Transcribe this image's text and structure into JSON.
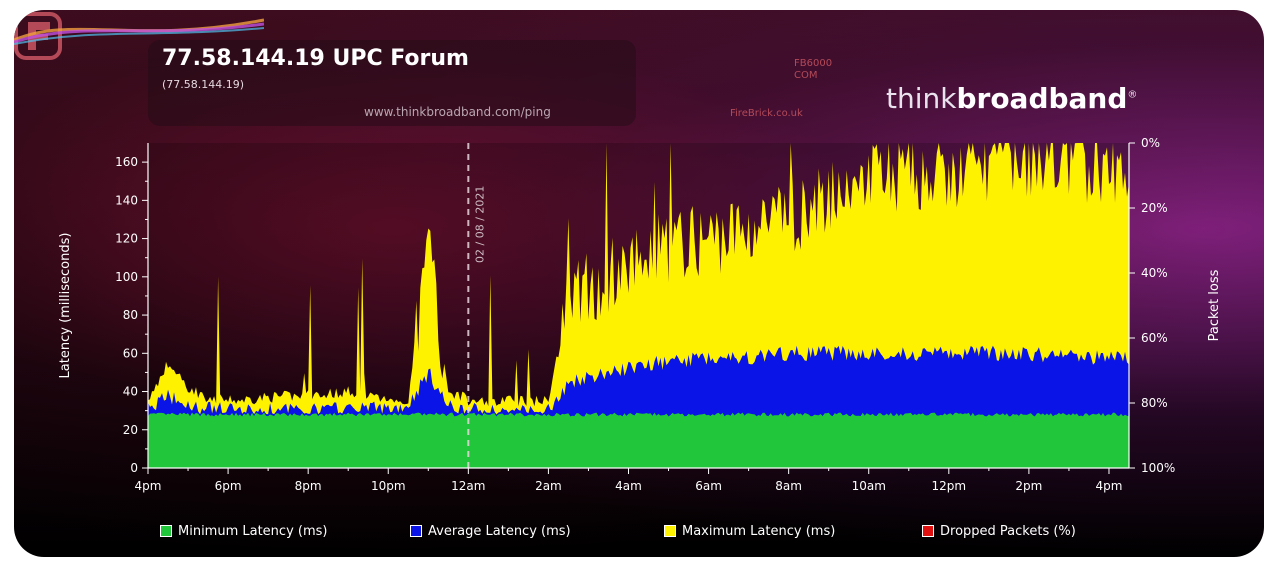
{
  "header": {
    "title": "77.58.144.19 UPC Forum",
    "subtitle": "(77.58.144.19)",
    "url": "www.thinkbroadband.com/ping"
  },
  "logos": {
    "firebrick_code": "FB6000\nCOM",
    "firebrick_site": "FireBrick.co.uk",
    "thinkbroadband_light": "think",
    "thinkbroadband_bold": "broadband",
    "thinkbroadband_mark": "®"
  },
  "colors": {
    "min_latency": "#22c63a",
    "avg_latency": "#0a14e6",
    "max_latency": "#fff200",
    "dropped_packets": "#e01010",
    "axis": "#ffffff"
  },
  "chart_data": {
    "type": "area",
    "title": "77.58.144.19 UPC Forum",
    "ylabel": "Latency (milliseconds)",
    "y2label": "Packet loss",
    "ylim": [
      0,
      170
    ],
    "y_ticks": [
      0,
      20,
      40,
      60,
      80,
      100,
      120,
      140,
      160
    ],
    "y2_ticks": [
      "0%",
      "20%",
      "40%",
      "60%",
      "80%",
      "100%"
    ],
    "x_ticks": [
      "4pm",
      "6pm",
      "8pm",
      "10pm",
      "12am",
      "2am",
      "4am",
      "6am",
      "8am",
      "10am",
      "12pm",
      "2pm",
      "4pm"
    ],
    "x_range_hours": [
      0,
      24.5
    ],
    "date_marker": {
      "at": "12am",
      "label": "02 / 08 / 2021"
    },
    "grid": false,
    "legend": [
      {
        "name": "Minimum Latency (ms)",
        "color": "#22c63a"
      },
      {
        "name": "Average Latency (ms)",
        "color": "#0a14e6"
      },
      {
        "name": "Maximum Latency (ms)",
        "color": "#fff200"
      },
      {
        "name": "Dropped Packets (%)",
        "color": "#e01010"
      }
    ],
    "x_hours": [
      0,
      0.5,
      1,
      1.5,
      2,
      3,
      4,
      5,
      6,
      6.5,
      7,
      7.5,
      7.8,
      8,
      9,
      10,
      10.5,
      11,
      11.5,
      12,
      12.5,
      13,
      14,
      15,
      16,
      17,
      18,
      19,
      20,
      21,
      22,
      23,
      24,
      24.5
    ],
    "series": [
      {
        "name": "Minimum Latency (ms)",
        "values": [
          28,
          28,
          28,
          28,
          28,
          28,
          28,
          28,
          28,
          28,
          28,
          28,
          28,
          28,
          28,
          28,
          28,
          28,
          28,
          28,
          28,
          28,
          28,
          28,
          28,
          28,
          28,
          28,
          28,
          28,
          28,
          28,
          28,
          28
        ]
      },
      {
        "name": "Average Latency (ms)",
        "values": [
          31,
          38,
          32,
          31,
          30,
          30,
          30,
          31,
          31,
          33,
          50,
          32,
          31,
          30,
          30,
          30,
          45,
          48,
          50,
          52,
          55,
          55,
          58,
          58,
          60,
          60,
          60,
          60,
          60,
          60,
          60,
          58,
          58,
          58
        ]
      },
      {
        "name": "Maximum Latency (ms)",
        "values": [
          35,
          55,
          42,
          37,
          35,
          37,
          38,
          40,
          35,
          36,
          118,
          40,
          38,
          35,
          35,
          35,
          90,
          95,
          100,
          110,
          115,
          115,
          120,
          125,
          130,
          140,
          150,
          155,
          150,
          160,
          158,
          160,
          155,
          155
        ]
      }
    ]
  }
}
